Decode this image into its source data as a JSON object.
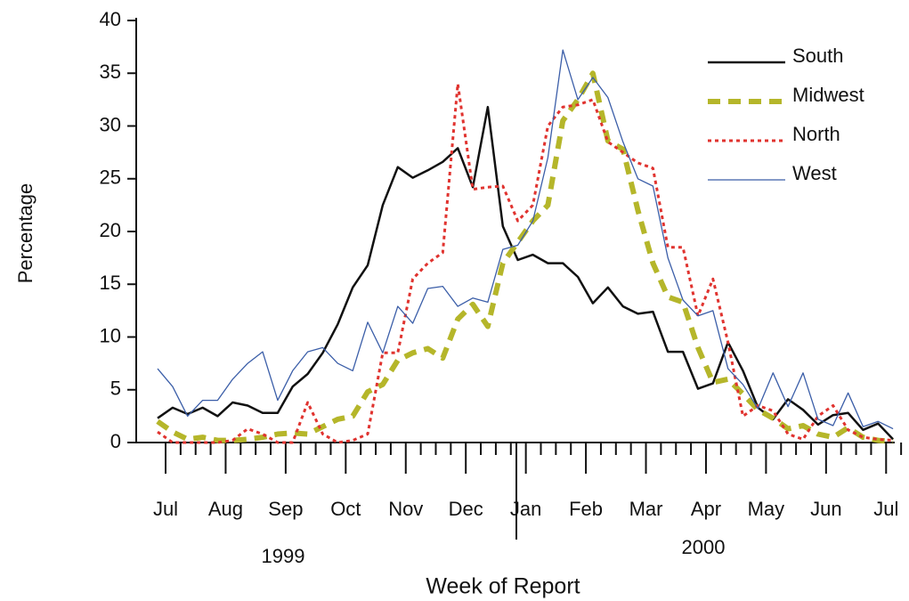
{
  "chart_data": {
    "type": "line",
    "y_label": "Percentage",
    "x_label": "Week of Report",
    "year_labels": [
      "1999",
      "2000"
    ],
    "categories": [
      "Jul",
      null,
      null,
      null,
      "Aug",
      null,
      null,
      null,
      "Sep",
      null,
      null,
      null,
      "Oct",
      null,
      null,
      null,
      "Nov",
      null,
      null,
      null,
      "Dec",
      null,
      null,
      null,
      "Jan",
      null,
      null,
      null,
      "Feb",
      null,
      null,
      null,
      "Mar",
      null,
      null,
      null,
      "Apr",
      null,
      null,
      null,
      "May",
      null,
      null,
      null,
      "Jun",
      null,
      null,
      null,
      "Jul",
      null
    ],
    "series": [
      {
        "name": "South",
        "color": "#111111",
        "style": "solid",
        "width": 2.5,
        "values": [
          2.3,
          3.3,
          2.7,
          3.3,
          2.5,
          3.8,
          3.5,
          2.8,
          2.8,
          5.3,
          6.5,
          8.5,
          11.2,
          14.7,
          16.8,
          22.5,
          26.1,
          25.1,
          25.8,
          26.6,
          27.9,
          24.2,
          31.8,
          20.5,
          17.3,
          17.8,
          17.0,
          17.0,
          15.7,
          13.2,
          14.7,
          12.9,
          12.2,
          12.4,
          8.6,
          8.6,
          5.1,
          5.6,
          9.5,
          6.8,
          3.3,
          2.2,
          4.1,
          3.1,
          1.7,
          2.6,
          2.8,
          1.2,
          1.8,
          0.3
        ]
      },
      {
        "name": "Midwest",
        "color": "#b5b62a",
        "style": "dashed",
        "width": 6,
        "values": [
          2.0,
          1.0,
          0.3,
          0.5,
          0.2,
          0.2,
          0.3,
          0.5,
          0.8,
          0.9,
          0.8,
          1.5,
          2.2,
          2.5,
          4.8,
          5.5,
          7.8,
          8.5,
          8.9,
          8.0,
          11.7,
          13.1,
          11.0,
          17.0,
          19.0,
          21.0,
          22.5,
          30.5,
          32.5,
          35.0,
          28.6,
          27.8,
          22.0,
          17.0,
          13.8,
          13.3,
          9.0,
          5.7,
          6.0,
          4.6,
          3.1,
          2.3,
          1.3,
          1.6,
          0.8,
          0.5,
          1.4,
          0.5,
          0.2,
          0.1
        ]
      },
      {
        "name": "North",
        "color": "#e0332f",
        "style": "dotted",
        "width": 3,
        "values": [
          1.0,
          0.0,
          0.0,
          0.0,
          0.0,
          0.2,
          1.3,
          0.8,
          0.0,
          0.0,
          3.8,
          0.8,
          0.0,
          0.2,
          0.8,
          8.5,
          8.5,
          15.5,
          17.0,
          18.0,
          34.0,
          24.0,
          24.2,
          24.3,
          21.0,
          22.5,
          30.0,
          31.8,
          32.0,
          32.5,
          28.5,
          27.5,
          26.5,
          26.0,
          18.5,
          18.5,
          12.0,
          15.5,
          9.5,
          2.5,
          3.5,
          3.0,
          0.8,
          0.3,
          2.5,
          3.5,
          1.2,
          0.5,
          0.3,
          0.2
        ]
      },
      {
        "name": "West",
        "color": "#3b5ea8",
        "style": "solid",
        "width": 1.3,
        "values": [
          7.0,
          5.3,
          2.5,
          4.0,
          4.0,
          6.0,
          7.5,
          8.6,
          4.0,
          6.8,
          8.6,
          9.0,
          7.5,
          6.8,
          11.4,
          8.5,
          12.9,
          11.3,
          14.6,
          14.8,
          12.9,
          13.7,
          13.3,
          18.3,
          18.7,
          21.0,
          27.0,
          37.2,
          32.5,
          34.6,
          32.7,
          28.5,
          25.0,
          24.3,
          17.5,
          13.5,
          12.0,
          12.5,
          7.0,
          5.5,
          3.2,
          6.6,
          3.4,
          6.6,
          2.2,
          1.6,
          4.7,
          1.5,
          2.0,
          1.3
        ]
      }
    ],
    "ylim": [
      0,
      40
    ],
    "yticks": [
      0,
      5,
      10,
      15,
      20,
      25,
      30,
      35,
      40
    ]
  }
}
